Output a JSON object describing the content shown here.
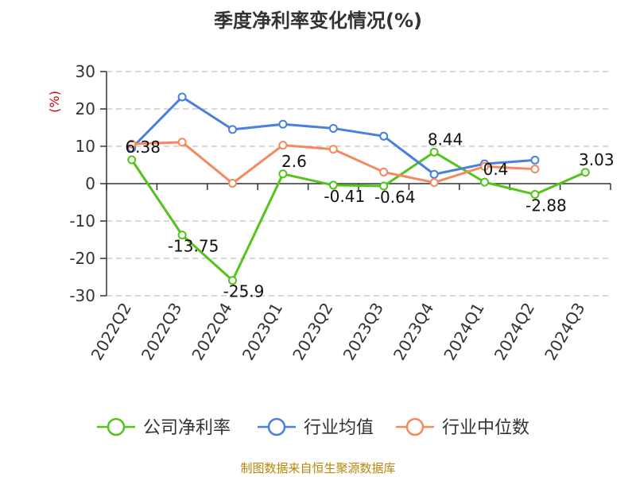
{
  "chart_data": {
    "type": "line",
    "title": "季度净利率变化情况(%)",
    "ylabel": "(%)",
    "categories": [
      "2022Q2",
      "2022Q3",
      "2022Q4",
      "2023Q1",
      "2023Q2",
      "2023Q3",
      "2023Q4",
      "2024Q1",
      "2024Q2",
      "2024Q3"
    ],
    "ylim": [
      -30,
      30
    ],
    "yticks": [
      30,
      20,
      10,
      0,
      -10,
      -20,
      -30
    ],
    "grid": true,
    "legend_position": "bottom",
    "series": [
      {
        "name": "公司净利率",
        "color": "#52c41a",
        "values": [
          6.38,
          -13.75,
          -25.9,
          2.6,
          -0.41,
          -0.64,
          8.44,
          0.4,
          -2.88,
          3.03
        ],
        "labels": [
          "6.38",
          "-13.75",
          "-25.9",
          "2.6",
          "-0.41",
          "-0.64",
          "8.44",
          "0.4",
          "-2.88",
          "3.03"
        ]
      },
      {
        "name": "行业均值",
        "color": "#4a7fdc",
        "values": [
          9.5,
          23.2,
          14.5,
          15.9,
          14.8,
          12.7,
          2.5,
          5.3,
          6.3,
          null
        ]
      },
      {
        "name": "行业中位数",
        "color": "#f4895f",
        "values": [
          10.6,
          11.1,
          0.1,
          10.3,
          9.2,
          3.1,
          0.3,
          4.6,
          3.9,
          null
        ]
      }
    ]
  },
  "footer": {
    "source": "制图数据来自恒生聚源数据库"
  }
}
